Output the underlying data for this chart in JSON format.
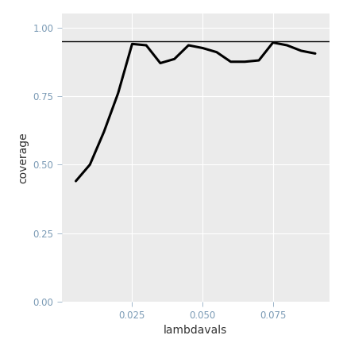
{
  "x": [
    0.005,
    0.01,
    0.015,
    0.02,
    0.025,
    0.03,
    0.035,
    0.04,
    0.045,
    0.05,
    0.055,
    0.06,
    0.065,
    0.07,
    0.075,
    0.08,
    0.085,
    0.09
  ],
  "y": [
    0.44,
    0.5,
    0.62,
    0.76,
    0.94,
    0.935,
    0.87,
    0.885,
    0.935,
    0.925,
    0.91,
    0.875,
    0.875,
    0.88,
    0.945,
    0.935,
    0.915,
    0.905
  ],
  "hline_y": 0.95,
  "hline_color": "#000000",
  "line_color": "#000000",
  "line_width": 2.2,
  "xlabel": "lambdavals",
  "ylabel": "coverage",
  "xlim": [
    0.0,
    0.095
  ],
  "ylim": [
    0.0,
    1.05
  ],
  "yticks": [
    0.0,
    0.25,
    0.5,
    0.75,
    1.0
  ],
  "xticks": [
    0.025,
    0.05,
    0.075
  ],
  "background_color": "#ebebeb",
  "fig_background": "#ffffff",
  "grid_color": "#ffffff",
  "tick_label_color": "#7a9ab5",
  "axis_label_color": "#333333",
  "label_fontsize": 10,
  "tick_fontsize": 8.5
}
